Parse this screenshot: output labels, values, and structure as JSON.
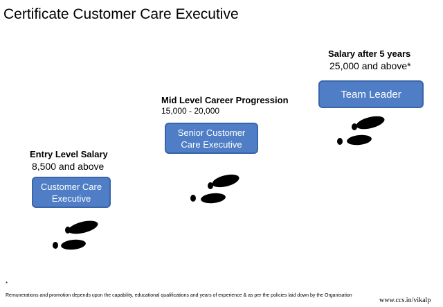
{
  "title": "Certificate Customer Care Executive",
  "levels": [
    {
      "heading": "Entry Level Salary",
      "value": "8,500 and above",
      "role": "Customer Care Executive"
    },
    {
      "heading": "Mid Level Career Progression",
      "value": "15,000 - 20,000",
      "role": "Senior Customer Care Executive"
    },
    {
      "heading": "Salary after 5 years",
      "value": "25,000 and above*",
      "role": "Team Leader"
    }
  ],
  "footer": {
    "mark": "*",
    "note": "Remunerations and promotion depends upon the capability, educational qualifications and years of experience & as per the policies laid down by the Organisation",
    "url": "www.ccs.in/vikalp"
  },
  "icons": [
    "footprints-icon"
  ],
  "colors": {
    "box_fill": "#4f7ec6",
    "box_border": "#3a65a8",
    "box_text": "#ffffff"
  }
}
